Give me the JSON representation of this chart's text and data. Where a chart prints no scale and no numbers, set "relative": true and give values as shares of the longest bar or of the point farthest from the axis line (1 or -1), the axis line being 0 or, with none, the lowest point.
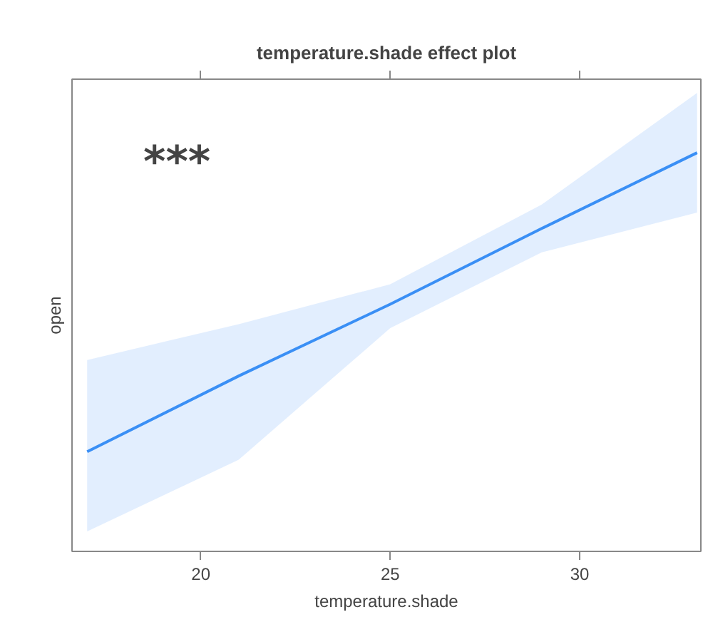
{
  "chart_data": {
    "type": "line",
    "title": "temperature.shade effect plot",
    "xlabel": "temperature.shade",
    "ylabel": "open",
    "relative": true,
    "x": [
      17,
      21,
      25,
      29,
      33.1
    ],
    "series": [
      {
        "color": "#3a8ff5",
        "values": [
          0.25,
          0.44,
          0.62,
          0.81,
          1
        ],
        "lower": [
          0.05,
          0.23,
          0.56,
          0.75,
          0.85
        ],
        "upper": [
          0.48,
          0.57,
          0.67,
          0.87,
          1.15
        ]
      }
    ],
    "xlim": [
      16.6,
      33.2
    ],
    "xticks": [
      20,
      25,
      30
    ],
    "grid": false,
    "annotations": [
      "***"
    ]
  }
}
